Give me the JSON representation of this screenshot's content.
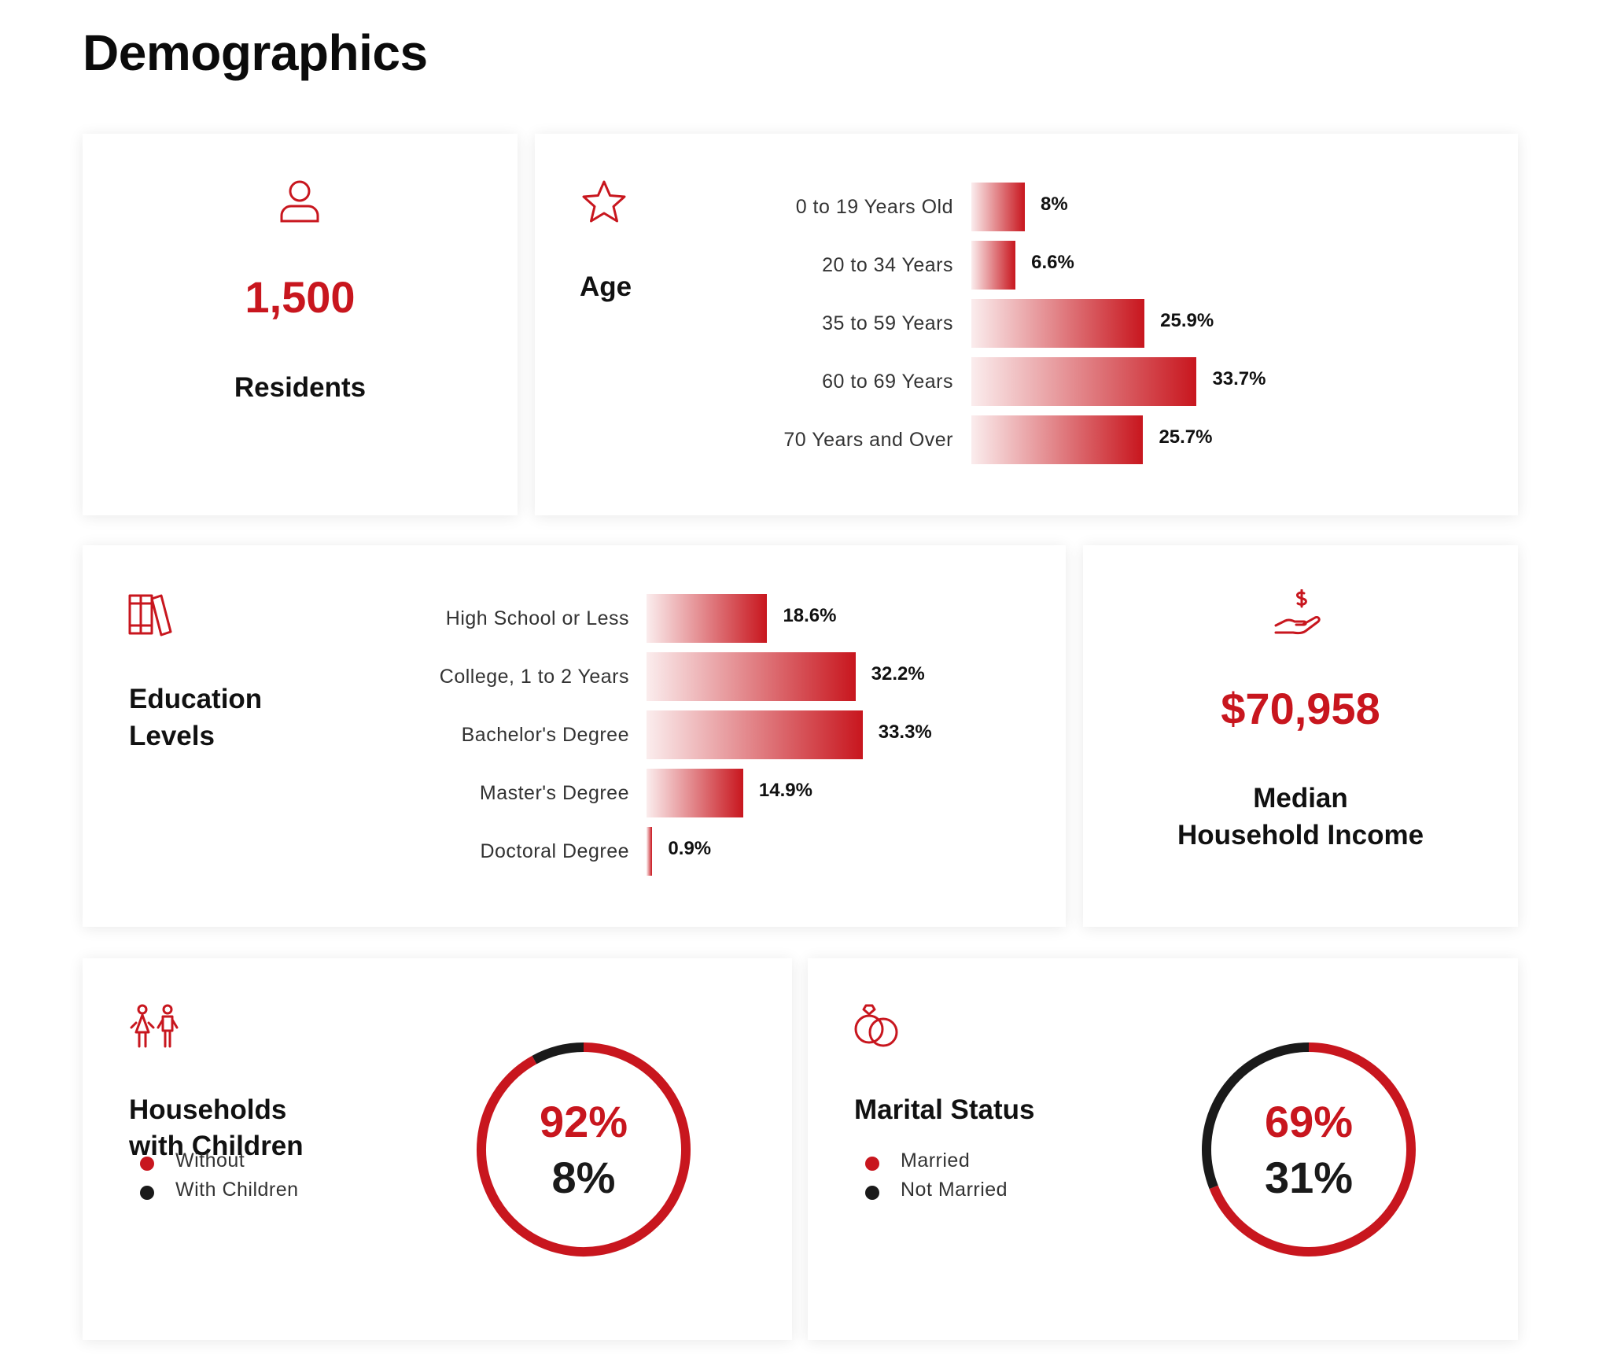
{
  "page": {
    "title": "Demographics"
  },
  "colors": {
    "accent": "#c8161e",
    "dark": "#1a1a1a"
  },
  "residents": {
    "icon": "person-icon",
    "value": "1,500",
    "label": "Residents"
  },
  "age": {
    "icon": "star-icon",
    "title": "Age",
    "rows": [
      {
        "label": "0 to 19 Years Old",
        "value": 8,
        "display": "8%"
      },
      {
        "label": "20 to 34 Years",
        "value": 6.6,
        "display": "6.6%"
      },
      {
        "label": "35 to 59 Years",
        "value": 25.9,
        "display": "25.9%"
      },
      {
        "label": "60 to 69 Years",
        "value": 33.7,
        "display": "33.7%"
      },
      {
        "label": "70 Years and Over",
        "value": 25.7,
        "display": "25.7%"
      }
    ]
  },
  "education": {
    "icon": "books-icon",
    "title_line1": "Education",
    "title_line2": "Levels",
    "rows": [
      {
        "label": "High School or Less",
        "value": 18.6,
        "display": "18.6%"
      },
      {
        "label": "College, 1 to 2 Years",
        "value": 32.2,
        "display": "32.2%"
      },
      {
        "label": "Bachelor's Degree",
        "value": 33.3,
        "display": "33.3%"
      },
      {
        "label": "Master's Degree",
        "value": 14.9,
        "display": "14.9%"
      },
      {
        "label": "Doctoral Degree",
        "value": 0.9,
        "display": "0.9%"
      }
    ]
  },
  "income": {
    "icon": "hand-dollar-icon",
    "value": "$70,958",
    "label_line1": "Median",
    "label_line2": "Household Income"
  },
  "households": {
    "icon": "children-icon",
    "title_line1": "Households",
    "title_line2": "with Children",
    "legend": [
      {
        "label": "Without",
        "color": "#c8161e"
      },
      {
        "label": "With Children",
        "color": "#1a1a1a"
      }
    ],
    "pct_primary": "92%",
    "pct_secondary": "8%"
  },
  "marital": {
    "icon": "rings-icon",
    "title": "Marital Status",
    "legend": [
      {
        "label": "Married",
        "color": "#c8161e"
      },
      {
        "label": "Not Married",
        "color": "#1a1a1a"
      }
    ],
    "pct_primary": "69%",
    "pct_secondary": "31%"
  },
  "chart_data": [
    {
      "type": "bar",
      "title": "Age",
      "orientation": "horizontal",
      "categories": [
        "0 to 19 Years Old",
        "20 to 34 Years",
        "35 to 59 Years",
        "60 to 69 Years",
        "70 Years and Over"
      ],
      "values": [
        8,
        6.6,
        25.9,
        33.7,
        25.7
      ],
      "unit": "%"
    },
    {
      "type": "bar",
      "title": "Education Levels",
      "orientation": "horizontal",
      "categories": [
        "High School or Less",
        "College, 1 to 2 Years",
        "Bachelor's Degree",
        "Master's Degree",
        "Doctoral Degree"
      ],
      "values": [
        18.6,
        32.2,
        33.3,
        14.9,
        0.9
      ],
      "unit": "%"
    },
    {
      "type": "pie",
      "title": "Households with Children",
      "donut": true,
      "categories": [
        "Without",
        "With Children"
      ],
      "values": [
        92,
        8
      ],
      "colors": [
        "#c8161e",
        "#1a1a1a"
      ]
    },
    {
      "type": "pie",
      "title": "Marital Status",
      "donut": true,
      "categories": [
        "Married",
        "Not Married"
      ],
      "values": [
        69,
        31
      ],
      "colors": [
        "#c8161e",
        "#1a1a1a"
      ]
    }
  ]
}
